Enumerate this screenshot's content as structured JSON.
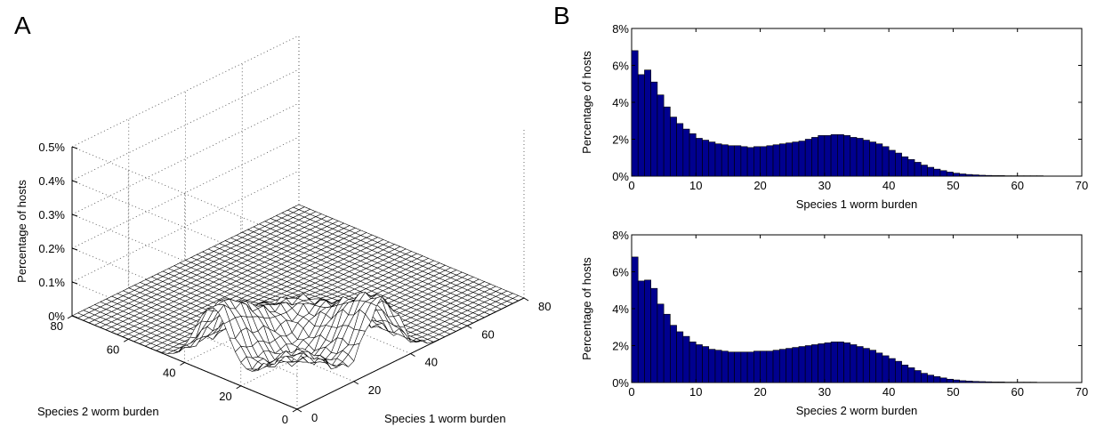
{
  "panels": {
    "a_label": "A",
    "b_label": "B"
  },
  "chart_data": [
    {
      "type": "surface3d",
      "panel": "A",
      "xlabel": "Species 1 worm burden",
      "ylabel": "Species 2 worm burden",
      "zlabel": "Percentage of hosts",
      "xlim": [
        0,
        80
      ],
      "ylim": [
        0,
        80
      ],
      "zlim": [
        0,
        0.5
      ],
      "xticks": [
        "0",
        "20",
        "40",
        "60",
        "80"
      ],
      "yticks": [
        "0",
        "20",
        "40",
        "60",
        "80"
      ],
      "zticks": [
        "0%",
        "0.1%",
        "0.2%",
        "0.3%",
        "0.4%",
        "0.5%"
      ],
      "peaks": [
        {
          "x": 2,
          "y": 30,
          "z": 0.2
        },
        {
          "x": 30,
          "y": 2,
          "z": 0.2
        },
        {
          "x": 2,
          "y": 2,
          "z": 0.15
        },
        {
          "x": 30,
          "y": 30,
          "z": 0.05
        }
      ],
      "grid": true
    },
    {
      "type": "bar",
      "panel": "B-top",
      "xlabel": "Species 1 worm burden",
      "ylabel": "Percentage of hosts",
      "xlim": [
        0,
        70
      ],
      "ylim": [
        0,
        8
      ],
      "xticks": [
        "0",
        "10",
        "20",
        "30",
        "40",
        "50",
        "60",
        "70"
      ],
      "yticks": [
        "0%",
        "2%",
        "4%",
        "6%",
        "8%"
      ],
      "bar_color": "#00008f",
      "x": [
        0,
        1,
        2,
        3,
        4,
        5,
        6,
        7,
        8,
        9,
        10,
        11,
        12,
        13,
        14,
        15,
        16,
        17,
        18,
        19,
        20,
        21,
        22,
        23,
        24,
        25,
        26,
        27,
        28,
        29,
        30,
        31,
        32,
        33,
        34,
        35,
        36,
        37,
        38,
        39,
        40,
        41,
        42,
        43,
        44,
        45,
        46,
        47,
        48,
        49,
        50,
        51,
        52,
        53,
        54,
        55,
        56,
        57,
        58,
        59,
        60,
        61,
        62,
        63,
        64,
        65,
        66,
        67,
        68,
        69
      ],
      "values": [
        6.8,
        5.5,
        5.75,
        5.1,
        4.4,
        3.75,
        3.2,
        2.85,
        2.55,
        2.3,
        2.05,
        1.95,
        1.85,
        1.75,
        1.7,
        1.65,
        1.65,
        1.6,
        1.55,
        1.6,
        1.6,
        1.65,
        1.7,
        1.75,
        1.8,
        1.85,
        1.9,
        2.0,
        2.1,
        2.2,
        2.2,
        2.25,
        2.25,
        2.2,
        2.1,
        2.05,
        1.95,
        1.85,
        1.75,
        1.6,
        1.4,
        1.25,
        1.05,
        0.9,
        0.75,
        0.6,
        0.48,
        0.38,
        0.3,
        0.22,
        0.16,
        0.12,
        0.09,
        0.07,
        0.05,
        0.04,
        0.03,
        0.03,
        0.02,
        0.02,
        0.02,
        0.02,
        0.02,
        0.02,
        0.01,
        0.01,
        0.01,
        0.01,
        0.01,
        0.01
      ]
    },
    {
      "type": "bar",
      "panel": "B-bottom",
      "xlabel": "Species 2 worm burden",
      "ylabel": "Percentage of hosts",
      "xlim": [
        0,
        70
      ],
      "ylim": [
        0,
        8
      ],
      "xticks": [
        "0",
        "10",
        "20",
        "30",
        "40",
        "50",
        "60",
        "70"
      ],
      "yticks": [
        "0%",
        "2%",
        "4%",
        "6%",
        "8%"
      ],
      "bar_color": "#00008f",
      "x": [
        0,
        1,
        2,
        3,
        4,
        5,
        6,
        7,
        8,
        9,
        10,
        11,
        12,
        13,
        14,
        15,
        16,
        17,
        18,
        19,
        20,
        21,
        22,
        23,
        24,
        25,
        26,
        27,
        28,
        29,
        30,
        31,
        32,
        33,
        34,
        35,
        36,
        37,
        38,
        39,
        40,
        41,
        42,
        43,
        44,
        45,
        46,
        47,
        48,
        49,
        50,
        51,
        52,
        53,
        54,
        55,
        56,
        57,
        58,
        59,
        60,
        61,
        62,
        63,
        64,
        65,
        66,
        67,
        68,
        69
      ],
      "values": [
        6.8,
        5.5,
        5.55,
        5.1,
        4.25,
        3.7,
        3.1,
        2.75,
        2.5,
        2.2,
        2.05,
        1.95,
        1.8,
        1.75,
        1.7,
        1.65,
        1.65,
        1.65,
        1.65,
        1.7,
        1.7,
        1.7,
        1.75,
        1.8,
        1.85,
        1.9,
        1.95,
        2.0,
        2.05,
        2.1,
        2.15,
        2.2,
        2.2,
        2.15,
        2.05,
        1.95,
        1.85,
        1.75,
        1.6,
        1.45,
        1.3,
        1.15,
        0.95,
        0.8,
        0.65,
        0.5,
        0.4,
        0.32,
        0.25,
        0.18,
        0.14,
        0.1,
        0.08,
        0.06,
        0.05,
        0.04,
        0.03,
        0.03,
        0.02,
        0.02,
        0.02,
        0.02,
        0.02,
        0.01,
        0.01,
        0.01,
        0.01,
        0.01,
        0.01,
        0.01
      ]
    }
  ]
}
